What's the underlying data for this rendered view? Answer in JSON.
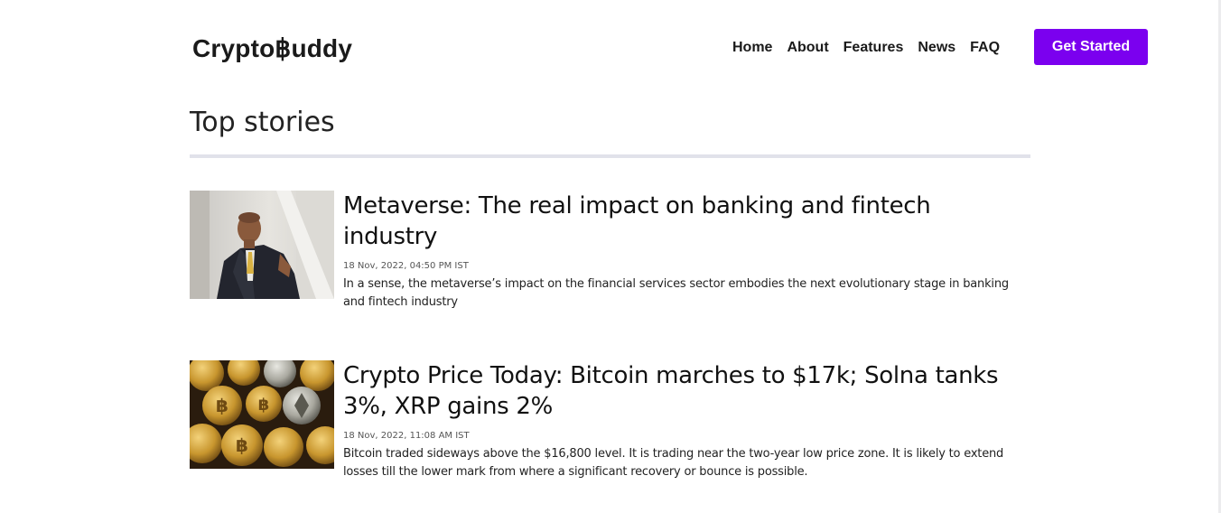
{
  "brand": {
    "prefix": "Crypto",
    "symbol": "฿",
    "suffix": "uddy"
  },
  "nav": {
    "items": [
      "Home",
      "About",
      "Features",
      "News",
      "FAQ"
    ],
    "cta_label": "Get Started"
  },
  "section": {
    "title": "Top stories"
  },
  "stories": [
    {
      "title": "Metaverse: The real impact on banking and fintech industry",
      "date": "18 Nov, 2022, 04:50 PM IST",
      "description": "In a sense, the metaverse’s impact on the financial services sector embodies the next evolutionary stage in banking and fintech industry",
      "thumbnail": "businessman-photo"
    },
    {
      "title": "Crypto Price Today: Bitcoin marches to $17k; Solna tanks 3%, XRP gains 2%",
      "date": "18 Nov, 2022, 11:08 AM IST",
      "description": "Bitcoin traded sideways above the $16,800 level. It is trading near the two-year low price zone. It is likely to extend losses till the lower mark from where a significant recovery or bounce is possible.",
      "thumbnail": "crypto-coins-photo"
    }
  ],
  "colors": {
    "accent": "#7b00ef",
    "divider": "#e1e2ea"
  }
}
